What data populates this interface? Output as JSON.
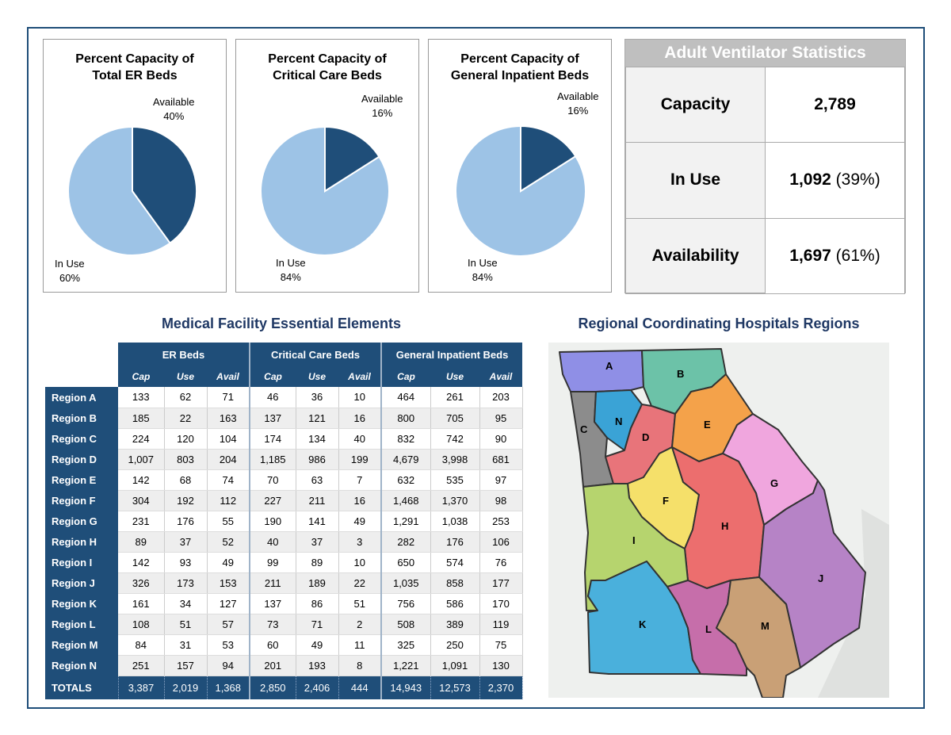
{
  "pies": [
    {
      "title_line1": "Percent Capacity of",
      "title_line2": "Total ER Beds",
      "available_label": "Available",
      "available_pct": "40%",
      "inuse_label": "In Use",
      "inuse_pct": "60%",
      "available_fraction": 0.4
    },
    {
      "title_line1": "Percent Capacity of",
      "title_line2": "Critical Care Beds",
      "available_label": "Available",
      "available_pct": "16%",
      "inuse_label": "In Use",
      "inuse_pct": "84%",
      "available_fraction": 0.16
    },
    {
      "title_line1": "Percent Capacity of",
      "title_line2": "General Inpatient Beds",
      "available_label": "Available",
      "available_pct": "16%",
      "inuse_label": "In Use",
      "inuse_pct": "84%",
      "available_fraction": 0.16
    }
  ],
  "colors": {
    "available": "#1f4e79",
    "in_use": "#9dc3e6",
    "header": "#1f4e79",
    "title": "#1f3864"
  },
  "ventilator": {
    "title": "Adult Ventilator Statistics",
    "rows": [
      {
        "label": "Capacity",
        "value": "2,789",
        "pct": ""
      },
      {
        "label": "In Use",
        "value": "1,092",
        "pct": " (39%)"
      },
      {
        "label": "Availability",
        "value": "1,697",
        "pct": " (61%)"
      }
    ]
  },
  "table": {
    "title": "Medical Facility Essential Elements",
    "groups": [
      "ER Beds",
      "Critical Care Beds",
      "General Inpatient Beds"
    ],
    "subheaders": [
      "Cap",
      "Use",
      "Avail",
      "Cap",
      "Use",
      "Avail",
      "Cap",
      "Use",
      "Avail"
    ],
    "rows": [
      {
        "name": "Region A",
        "vals": [
          "133",
          "62",
          "71",
          "46",
          "36",
          "10",
          "464",
          "261",
          "203"
        ]
      },
      {
        "name": "Region B",
        "vals": [
          "185",
          "22",
          "163",
          "137",
          "121",
          "16",
          "800",
          "705",
          "95"
        ]
      },
      {
        "name": "Region C",
        "vals": [
          "224",
          "120",
          "104",
          "174",
          "134",
          "40",
          "832",
          "742",
          "90"
        ]
      },
      {
        "name": "Region D",
        "vals": [
          "1,007",
          "803",
          "204",
          "1,185",
          "986",
          "199",
          "4,679",
          "3,998",
          "681"
        ]
      },
      {
        "name": "Region E",
        "vals": [
          "142",
          "68",
          "74",
          "70",
          "63",
          "7",
          "632",
          "535",
          "97"
        ]
      },
      {
        "name": "Region F",
        "vals": [
          "304",
          "192",
          "112",
          "227",
          "211",
          "16",
          "1,468",
          "1,370",
          "98"
        ]
      },
      {
        "name": "Region G",
        "vals": [
          "231",
          "176",
          "55",
          "190",
          "141",
          "49",
          "1,291",
          "1,038",
          "253"
        ]
      },
      {
        "name": "Region H",
        "vals": [
          "89",
          "37",
          "52",
          "40",
          "37",
          "3",
          "282",
          "176",
          "106"
        ]
      },
      {
        "name": "Region I",
        "vals": [
          "142",
          "93",
          "49",
          "99",
          "89",
          "10",
          "650",
          "574",
          "76"
        ]
      },
      {
        "name": "Region J",
        "vals": [
          "326",
          "173",
          "153",
          "211",
          "189",
          "22",
          "1,035",
          "858",
          "177"
        ]
      },
      {
        "name": "Region K",
        "vals": [
          "161",
          "34",
          "127",
          "137",
          "86",
          "51",
          "756",
          "586",
          "170"
        ]
      },
      {
        "name": "Region L",
        "vals": [
          "108",
          "51",
          "57",
          "73",
          "71",
          "2",
          "508",
          "389",
          "119"
        ]
      },
      {
        "name": "Region M",
        "vals": [
          "84",
          "31",
          "53",
          "60",
          "49",
          "11",
          "325",
          "250",
          "75"
        ]
      },
      {
        "name": "Region N",
        "vals": [
          "251",
          "157",
          "94",
          "201",
          "193",
          "8",
          "1,221",
          "1,091",
          "130"
        ]
      }
    ],
    "totals": {
      "name": "TOTALS",
      "vals": [
        "3,387",
        "2,019",
        "1,368",
        "2,850",
        "2,406",
        "444",
        "14,943",
        "12,573",
        "2,370"
      ]
    }
  },
  "map": {
    "title": "Regional Coordinating Hospitals Regions",
    "regions": [
      {
        "label": "A",
        "color": "#8f8fe6"
      },
      {
        "label": "B",
        "color": "#6cc2a8"
      },
      {
        "label": "C",
        "color": "#8c8c8c"
      },
      {
        "label": "D",
        "color": "#e8747a"
      },
      {
        "label": "E",
        "color": "#f4a24a"
      },
      {
        "label": "F",
        "color": "#f5e06a"
      },
      {
        "label": "G",
        "color": "#f0a6de"
      },
      {
        "label": "H",
        "color": "#ec6e6e"
      },
      {
        "label": "I",
        "color": "#b6d46e"
      },
      {
        "label": "J",
        "color": "#b683c6"
      },
      {
        "label": "K",
        "color": "#4ab0dc"
      },
      {
        "label": "L",
        "color": "#c66eaa"
      },
      {
        "label": "M",
        "color": "#c9a076"
      },
      {
        "label": "N",
        "color": "#3aa3d6"
      }
    ]
  },
  "chart_data": [
    {
      "type": "pie",
      "title": "Percent Capacity of Total ER Beds",
      "labels": [
        "Available",
        "In Use"
      ],
      "values": [
        40,
        60
      ]
    },
    {
      "type": "pie",
      "title": "Percent Capacity of Critical Care Beds",
      "labels": [
        "Available",
        "In Use"
      ],
      "values": [
        16,
        84
      ]
    },
    {
      "type": "pie",
      "title": "Percent Capacity of General Inpatient Beds",
      "labels": [
        "Available",
        "In Use"
      ],
      "values": [
        16,
        84
      ]
    },
    {
      "type": "table",
      "title": "Adult Ventilator Statistics",
      "rows": [
        [
          "Capacity",
          "2,789"
        ],
        [
          "In Use",
          "1,092 (39%)"
        ],
        [
          "Availability",
          "1,697 (61%)"
        ]
      ]
    }
  ]
}
